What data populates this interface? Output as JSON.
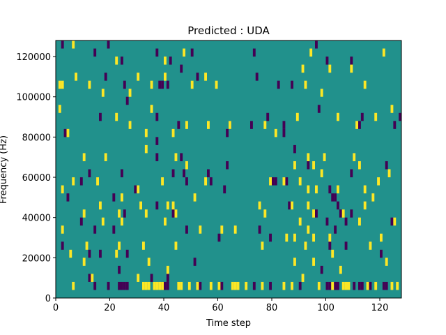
{
  "chart_data": {
    "type": "heatmap",
    "title": "Predicted : UDA",
    "xlabel": "Time step",
    "ylabel": "Frequency (Hz)",
    "xlim": [
      0,
      128
    ],
    "ylim": [
      0,
      128000
    ],
    "xticks": [
      0,
      20,
      40,
      60,
      80,
      100,
      120
    ],
    "yticks": [
      0,
      20000,
      40000,
      60000,
      80000,
      100000,
      120000
    ],
    "xtick_labels": [
      "0",
      "20",
      "40",
      "60",
      "80",
      "100",
      "120"
    ],
    "ytick_labels": [
      "0",
      "20000",
      "40000",
      "60000",
      "80000",
      "100000",
      "120000"
    ],
    "colors": {
      "background": "#21918c",
      "high": "#fde725",
      "low": "#440154"
    },
    "cell_height_hz": 4000,
    "cell_width_steps": 1,
    "high_cells": [
      [
        6,
        124000
      ],
      [
        22,
        116000
      ],
      [
        40,
        116000
      ],
      [
        47,
        120000
      ],
      [
        94,
        120000
      ],
      [
        121,
        120000
      ],
      [
        7,
        108000
      ],
      [
        30,
        108000
      ],
      [
        40,
        108000
      ],
      [
        55,
        108000
      ],
      [
        91,
        112000
      ],
      [
        101,
        112000
      ],
      [
        12,
        104000
      ],
      [
        17,
        100000
      ],
      [
        35,
        104000
      ],
      [
        50,
        104000
      ],
      [
        59,
        104000
      ],
      [
        92,
        104000
      ],
      [
        109,
        112000
      ],
      [
        1,
        104000
      ],
      [
        2,
        104000
      ],
      [
        27,
        100000
      ],
      [
        98,
        100000
      ],
      [
        114,
        104000
      ],
      [
        1,
        92000
      ],
      [
        22,
        88000
      ],
      [
        27,
        84000
      ],
      [
        35,
        92000
      ],
      [
        48,
        84000
      ],
      [
        56,
        84000
      ],
      [
        64,
        84000
      ],
      [
        77,
        84000
      ],
      [
        89,
        88000
      ],
      [
        104,
        88000
      ],
      [
        118,
        88000
      ],
      [
        124,
        92000
      ],
      [
        4,
        80000
      ],
      [
        33,
        80000
      ],
      [
        43,
        80000
      ],
      [
        81,
        80000
      ],
      [
        111,
        84000
      ],
      [
        10,
        68000
      ],
      [
        18,
        68000
      ],
      [
        33,
        72000
      ],
      [
        44,
        68000
      ],
      [
        48,
        64000
      ],
      [
        88,
        64000
      ],
      [
        93,
        68000
      ],
      [
        95,
        64000
      ],
      [
        98,
        60000
      ],
      [
        99,
        68000
      ],
      [
        110,
        68000
      ],
      [
        112,
        64000
      ],
      [
        2,
        52000
      ],
      [
        6,
        56000
      ],
      [
        15,
        56000
      ],
      [
        24,
        48000
      ],
      [
        30,
        52000
      ],
      [
        39,
        56000
      ],
      [
        55,
        56000
      ],
      [
        79,
        56000
      ],
      [
        84,
        56000
      ],
      [
        90,
        56000
      ],
      [
        93,
        52000
      ],
      [
        96,
        52000
      ],
      [
        104,
        52000
      ],
      [
        114,
        52000
      ],
      [
        117,
        48000
      ],
      [
        119,
        56000
      ],
      [
        123,
        60000
      ],
      [
        10,
        40000
      ],
      [
        16,
        44000
      ],
      [
        23,
        40000
      ],
      [
        31,
        44000
      ],
      [
        41,
        44000
      ],
      [
        43,
        44000
      ],
      [
        44,
        40000
      ],
      [
        51,
        48000
      ],
      [
        75,
        44000
      ],
      [
        77,
        40000
      ],
      [
        87,
        44000
      ],
      [
        90,
        36000
      ],
      [
        93,
        44000
      ],
      [
        95,
        40000
      ],
      [
        106,
        40000
      ],
      [
        114,
        44000
      ],
      [
        125,
        36000
      ],
      [
        2,
        32000
      ],
      [
        17,
        36000
      ],
      [
        24,
        36000
      ],
      [
        33,
        40000
      ],
      [
        40,
        36000
      ],
      [
        53,
        32000
      ],
      [
        61,
        32000
      ],
      [
        85,
        28000
      ],
      [
        93,
        32000
      ],
      [
        95,
        28000
      ],
      [
        101,
        28000
      ],
      [
        112,
        36000
      ],
      [
        5,
        20000
      ],
      [
        11,
        24000
      ],
      [
        23,
        24000
      ],
      [
        32,
        24000
      ],
      [
        44,
        24000
      ],
      [
        66,
        32000
      ],
      [
        76,
        24000
      ],
      [
        88,
        28000
      ],
      [
        92,
        24000
      ],
      [
        102,
        20000
      ],
      [
        116,
        24000
      ],
      [
        120,
        28000
      ],
      [
        10,
        16000
      ],
      [
        22,
        20000
      ],
      [
        34,
        16000
      ],
      [
        41,
        12000
      ],
      [
        88,
        16000
      ],
      [
        95,
        16000
      ],
      [
        105,
        12000
      ],
      [
        122,
        16000
      ],
      [
        6,
        4000
      ],
      [
        13,
        8000
      ],
      [
        30,
        8000
      ],
      [
        32,
        4000
      ],
      [
        33,
        4000
      ],
      [
        34,
        4000
      ],
      [
        36,
        4000
      ],
      [
        37,
        4000
      ],
      [
        38,
        4000
      ],
      [
        39,
        4000
      ],
      [
        45,
        4000
      ],
      [
        46,
        4000
      ],
      [
        49,
        4000
      ],
      [
        52,
        4000
      ],
      [
        57,
        4000
      ],
      [
        60,
        4000
      ],
      [
        65,
        4000
      ],
      [
        66,
        4000
      ],
      [
        67,
        4000
      ],
      [
        70,
        4000
      ],
      [
        76,
        4000
      ],
      [
        84,
        4000
      ],
      [
        87,
        4000
      ],
      [
        91,
        8000
      ],
      [
        97,
        4000
      ],
      [
        102,
        4000
      ],
      [
        106,
        4000
      ],
      [
        107,
        4000
      ],
      [
        108,
        4000
      ],
      [
        115,
        4000
      ],
      [
        118,
        4000
      ],
      [
        124,
        4000
      ],
      [
        126,
        4000
      ]
    ],
    "low_cells": [
      [
        2,
        124000
      ],
      [
        14,
        120000
      ],
      [
        19,
        124000
      ],
      [
        37,
        120000
      ],
      [
        42,
        116000
      ],
      [
        50,
        120000
      ],
      [
        73,
        120000
      ],
      [
        96,
        124000
      ],
      [
        100,
        116000
      ],
      [
        18,
        108000
      ],
      [
        24,
        116000
      ],
      [
        46,
        112000
      ],
      [
        74,
        108000
      ],
      [
        82,
        104000
      ],
      [
        109,
        116000
      ],
      [
        25,
        104000
      ],
      [
        38,
        104000
      ],
      [
        39,
        104000
      ],
      [
        41,
        104000
      ],
      [
        52,
        108000
      ],
      [
        87,
        104000
      ],
      [
        97,
        92000
      ],
      [
        26,
        96000
      ],
      [
        16,
        88000
      ],
      [
        37,
        88000
      ],
      [
        45,
        84000
      ],
      [
        64,
        84000
      ],
      [
        72,
        84000
      ],
      [
        78,
        88000
      ],
      [
        84,
        84000
      ],
      [
        112,
        84000
      ],
      [
        113,
        88000
      ],
      [
        125,
        84000
      ],
      [
        127,
        88000
      ],
      [
        3,
        80000
      ],
      [
        37,
        76000
      ],
      [
        63,
        80000
      ],
      [
        84,
        80000
      ],
      [
        12,
        60000
      ],
      [
        24,
        60000
      ],
      [
        37,
        68000
      ],
      [
        43,
        60000
      ],
      [
        46,
        68000
      ],
      [
        47,
        60000
      ],
      [
        56,
        60000
      ],
      [
        63,
        64000
      ],
      [
        88,
        72000
      ],
      [
        93,
        64000
      ],
      [
        109,
        60000
      ],
      [
        122,
        64000
      ],
      [
        4,
        48000
      ],
      [
        9,
        56000
      ],
      [
        21,
        48000
      ],
      [
        25,
        40000
      ],
      [
        29,
        52000
      ],
      [
        43,
        40000
      ],
      [
        48,
        56000
      ],
      [
        57,
        56000
      ],
      [
        62,
        52000
      ],
      [
        80,
        56000
      ],
      [
        81,
        56000
      ],
      [
        85,
        56000
      ],
      [
        101,
        52000
      ],
      [
        102,
        48000
      ],
      [
        103,
        48000
      ],
      [
        104,
        44000
      ],
      [
        105,
        40000
      ],
      [
        109,
        40000
      ],
      [
        9,
        36000
      ],
      [
        14,
        32000
      ],
      [
        21,
        32000
      ],
      [
        37,
        44000
      ],
      [
        48,
        32000
      ],
      [
        60,
        28000
      ],
      [
        75,
        32000
      ],
      [
        86,
        44000
      ],
      [
        96,
        40000
      ],
      [
        100,
        36000
      ],
      [
        103,
        32000
      ],
      [
        107,
        36000
      ],
      [
        124,
        36000
      ],
      [
        2,
        24000
      ],
      [
        16,
        20000
      ],
      [
        26,
        20000
      ],
      [
        51,
        16000
      ],
      [
        79,
        28000
      ],
      [
        101,
        24000
      ],
      [
        107,
        24000
      ],
      [
        12,
        20000
      ],
      [
        23,
        12000
      ],
      [
        35,
        8000
      ],
      [
        41,
        8000
      ],
      [
        98,
        12000
      ],
      [
        120,
        20000
      ],
      [
        12,
        8000
      ],
      [
        14,
        4000
      ],
      [
        19,
        4000
      ],
      [
        23,
        4000
      ],
      [
        24,
        4000
      ],
      [
        25,
        4000
      ],
      [
        26,
        4000
      ],
      [
        39,
        4000
      ],
      [
        40,
        4000
      ],
      [
        41,
        4000
      ],
      [
        52,
        4000
      ],
      [
        53,
        4000
      ],
      [
        60,
        4000
      ],
      [
        61,
        4000
      ],
      [
        73,
        4000
      ],
      [
        79,
        4000
      ],
      [
        90,
        4000
      ],
      [
        100,
        4000
      ],
      [
        101,
        4000
      ],
      [
        103,
        4000
      ],
      [
        104,
        4000
      ],
      [
        110,
        4000
      ],
      [
        112,
        4000
      ],
      [
        113,
        4000
      ],
      [
        116,
        4000
      ],
      [
        121,
        4000
      ],
      [
        122,
        4000
      ]
    ]
  }
}
